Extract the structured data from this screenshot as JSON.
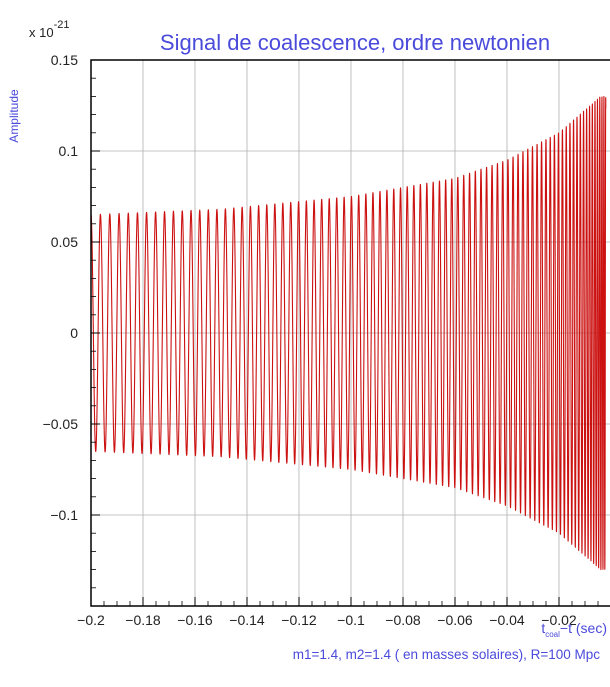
{
  "chart_data": {
    "type": "line",
    "title": "Signal de coalescence, ordre newtonien",
    "ylabel": "Amplitude",
    "y_scale_label": {
      "base": "x 10",
      "exponent": "-21"
    },
    "xlabel": {
      "main": "t",
      "subscript": "coal",
      "rest": "−t (sec)"
    },
    "xlim": [
      -0.2,
      0.0
    ],
    "ylim": [
      -0.15,
      0.15
    ],
    "x_ticks": [
      -0.2,
      -0.18,
      -0.16,
      -0.14,
      -0.12,
      -0.1,
      -0.08,
      -0.06,
      -0.04,
      -0.02
    ],
    "x_tick_labels": [
      "−0.2",
      "−0.18",
      "−0.16",
      "−0.14",
      "−0.12",
      "−0.1",
      "−0.08",
      "−0.06",
      "−0.04",
      "−0.02"
    ],
    "y_ticks": [
      0.15,
      0.1,
      0.05,
      0,
      -0.05,
      -0.1
    ],
    "y_tick_labels": [
      "0.15",
      "0.1",
      "0.05",
      "0",
      "−0.05",
      "−0.1"
    ],
    "grid": true,
    "series": [
      {
        "kind": "newtonian chirp waveform",
        "color": "#cc1111",
        "envelope": [
          {
            "x": -0.2,
            "y": 0.065
          },
          {
            "x": -0.15,
            "y": 0.068
          },
          {
            "x": -0.1,
            "y": 0.075
          },
          {
            "x": -0.06,
            "y": 0.085
          },
          {
            "x": -0.04,
            "y": 0.095
          },
          {
            "x": -0.02,
            "y": 0.11
          },
          {
            "x": -0.004,
            "y": 0.13
          }
        ],
        "cycles_in_window": 88
      }
    ],
    "footnote": "m1=1.4, m2=1.4 ( en masses solaires), R=100 Mpc"
  },
  "colors": {
    "title": "#4a4adb",
    "axis_label": "#4a4adb",
    "footnote": "#4a4adb",
    "tick_text": "#222222",
    "frame": "#000000",
    "grid": "#b0b0b0",
    "signal": "#cc1111"
  }
}
